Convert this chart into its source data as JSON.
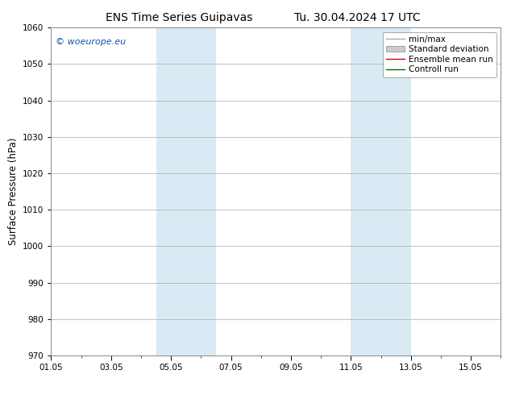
{
  "title_left": "ENS Time Series Guipavas",
  "title_right": "Tu. 30.04.2024 17 UTC",
  "ylabel": "Surface Pressure (hPa)",
  "ylim": [
    970,
    1060
  ],
  "yticks": [
    970,
    980,
    990,
    1000,
    1010,
    1020,
    1030,
    1040,
    1050,
    1060
  ],
  "xlim": [
    0,
    15
  ],
  "xtick_labels": [
    "01.05",
    "03.05",
    "05.05",
    "07.05",
    "09.05",
    "11.05",
    "13.05",
    "15.05"
  ],
  "xtick_positions": [
    0,
    2,
    4,
    6,
    8,
    10,
    12,
    14
  ],
  "shaded_bands": [
    {
      "x_start": 3.5,
      "x_end": 5.5
    },
    {
      "x_start": 10.0,
      "x_end": 12.0
    }
  ],
  "shaded_color": "#daeaf5",
  "watermark_text": "© woeurope.eu",
  "watermark_color": "#1155aa",
  "legend_entries": [
    {
      "label": "min/max",
      "color": "#aaaaaa",
      "lw": 1.0,
      "type": "line"
    },
    {
      "label": "Standard deviation",
      "color": "#cccccc",
      "lw": 6,
      "type": "band"
    },
    {
      "label": "Ensemble mean run",
      "color": "#cc0000",
      "lw": 1.0,
      "type": "line"
    },
    {
      "label": "Controll run",
      "color": "#006600",
      "lw": 1.0,
      "type": "line"
    }
  ],
  "background_color": "#ffffff",
  "plot_bg_color": "#ffffff",
  "grid_color": "#aaaaaa",
  "title_fontsize": 10,
  "tick_fontsize": 7.5,
  "ylabel_fontsize": 8.5,
  "legend_fontsize": 7.5
}
